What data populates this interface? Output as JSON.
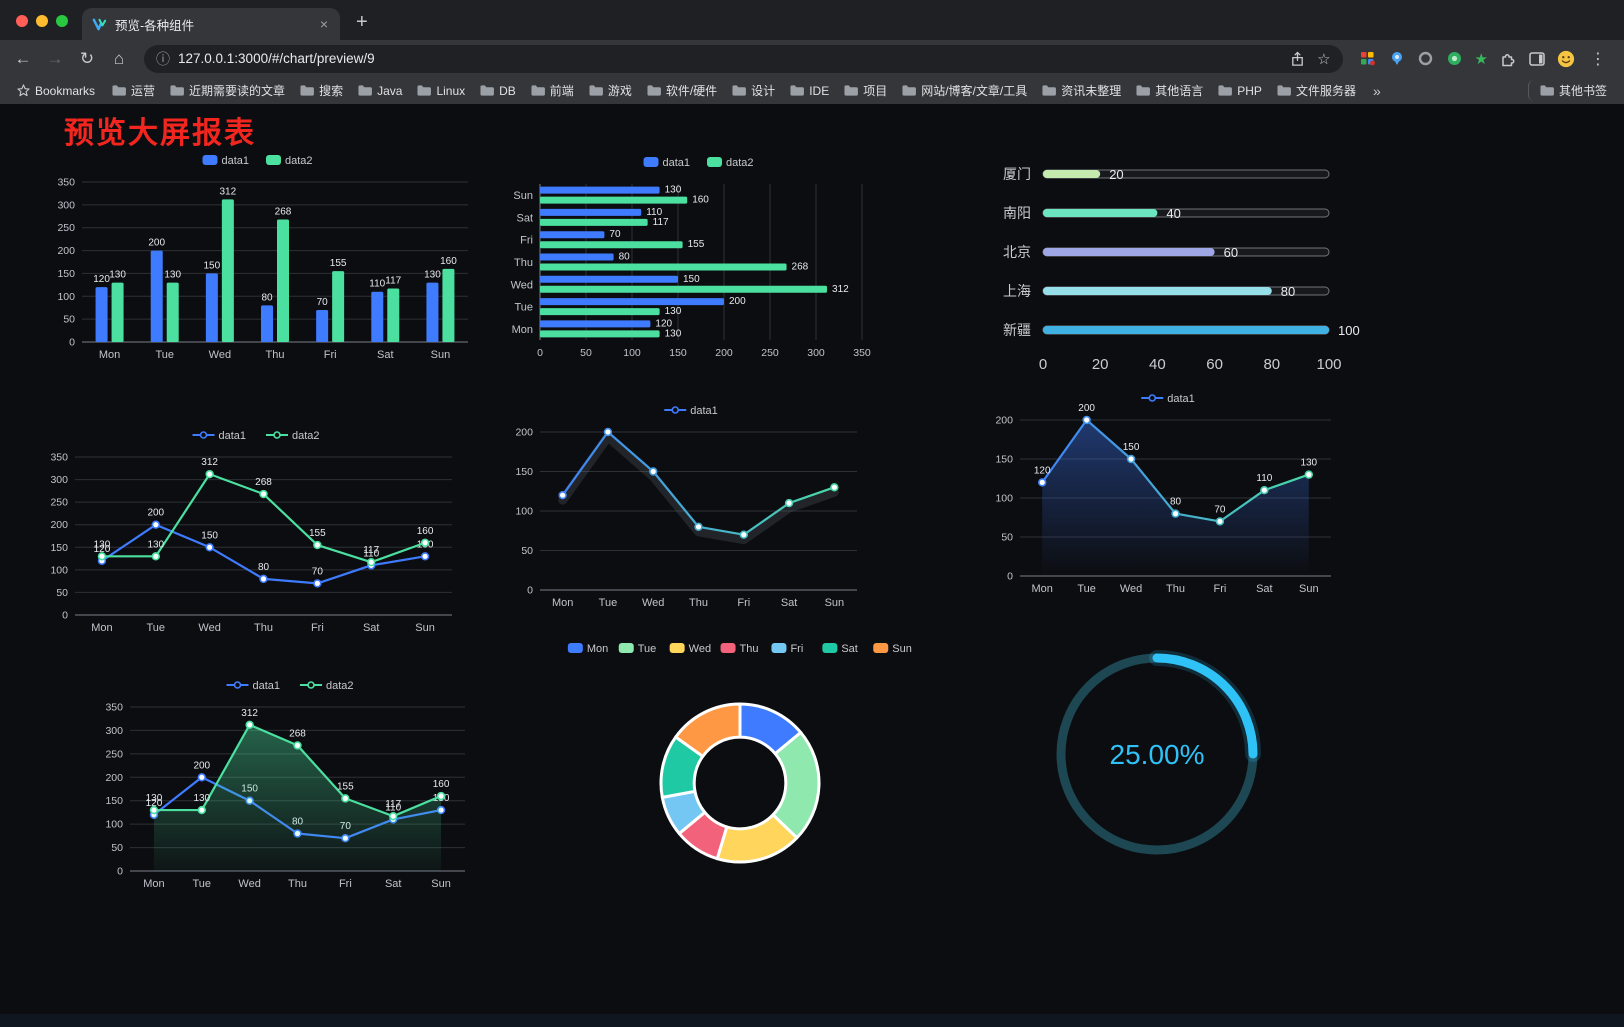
{
  "browser": {
    "traffic_lights": [
      "#ff5f57",
      "#febc2e",
      "#28c840"
    ],
    "tab": {
      "title": "预览-各种组件",
      "close": "×",
      "new_tab": "+"
    },
    "nav": {
      "back": "←",
      "forward": "→",
      "reload": "↻",
      "home": "⌂",
      "info": "ⓘ",
      "url": "127.0.0.1:3000/#/chart/preview/9",
      "star": "☆",
      "kebab": "⋮",
      "green_star": "★"
    },
    "bookmarks_bar": {
      "bookmarks_label": "Bookmarks",
      "folders": [
        "运营",
        "近期需要读的文章",
        "搜索",
        "Java",
        "Linux",
        "DB",
        "前端",
        "游戏",
        "软件/硬件",
        "设计",
        "IDE",
        "项目",
        "网站/博客/文章/工具",
        "资讯未整理",
        "其他语言",
        "PHP",
        "文件服务器"
      ],
      "overflow": "»",
      "other_bookmarks": "其他书签"
    }
  },
  "page": {
    "title": "预览大屏报表",
    "title_color": "#f3261f",
    "background": "#0c0d10"
  },
  "chart_data": [
    {
      "name": "grouped-bar-chart",
      "type": "bar",
      "categories": [
        "Mon",
        "Tue",
        "Wed",
        "Thu",
        "Fri",
        "Sat",
        "Sun"
      ],
      "series": [
        {
          "name": "data1",
          "color": "#3E7BFF",
          "values": [
            120,
            200,
            150,
            80,
            70,
            110,
            130
          ]
        },
        {
          "name": "data2",
          "color": "#4BE0A0",
          "values": [
            130,
            130,
            312,
            268,
            155,
            117,
            160
          ]
        }
      ],
      "ylim": [
        0,
        350
      ],
      "ytick_step": 50,
      "show_labels": true,
      "legend_position": "top",
      "grid": true
    },
    {
      "name": "horizontal-bar-chart",
      "type": "hbar",
      "categories": [
        "Mon",
        "Tue",
        "Wed",
        "Thu",
        "Fri",
        "Sat",
        "Sun"
      ],
      "series": [
        {
          "name": "data1",
          "color": "#3E7BFF",
          "values": [
            120,
            200,
            150,
            80,
            70,
            110,
            130
          ]
        },
        {
          "name": "data2",
          "color": "#4BE0A0",
          "values": [
            130,
            130,
            312,
            268,
            155,
            117,
            160
          ]
        }
      ],
      "xlim": [
        0,
        350
      ],
      "xtick_step": 50,
      "show_labels": true,
      "legend_position": "top",
      "grid": true
    },
    {
      "name": "progress-bar-chart",
      "type": "progress",
      "items": [
        {
          "label": "厦门",
          "value": 20,
          "color": "#c4ebad"
        },
        {
          "label": "南阳",
          "value": 40,
          "color": "#6be6c1"
        },
        {
          "label": "北京",
          "value": 60,
          "color": "#a0a7e6"
        },
        {
          "label": "上海",
          "value": 80,
          "color": "#96dee8"
        },
        {
          "label": "新疆",
          "value": 100,
          "color": "#3fb1e3"
        }
      ],
      "max": 100,
      "xticks": [
        0,
        20,
        40,
        60,
        80,
        100
      ]
    },
    {
      "name": "multi-line-chart",
      "type": "line",
      "categories": [
        "Mon",
        "Tue",
        "Wed",
        "Thu",
        "Fri",
        "Sat",
        "Sun"
      ],
      "series": [
        {
          "name": "data1",
          "color": "#3E7BFF",
          "values": [
            120,
            200,
            150,
            80,
            70,
            110,
            130
          ]
        },
        {
          "name": "data2",
          "color": "#4BE0A0",
          "values": [
            130,
            130,
            312,
            268,
            155,
            117,
            160
          ]
        }
      ],
      "ylim": [
        0,
        350
      ],
      "ytick_step": 50,
      "show_labels": true,
      "legend_position": "top",
      "grid": true
    },
    {
      "name": "gradient-line-chart",
      "type": "line",
      "categories": [
        "Mon",
        "Tue",
        "Wed",
        "Thu",
        "Fri",
        "Sat",
        "Sun"
      ],
      "series": [
        {
          "name": "data1",
          "gradient": [
            "#3E7BFF",
            "#4BE0A0"
          ],
          "values": [
            120,
            200,
            150,
            80,
            70,
            110,
            130
          ]
        }
      ],
      "ylim": [
        0,
        200
      ],
      "ytick_step": 50,
      "show_labels": false,
      "ghost": true,
      "legend_position": "top",
      "grid": true
    },
    {
      "name": "gradient-area-line-chart",
      "type": "line",
      "categories": [
        "Mon",
        "Tue",
        "Wed",
        "Thu",
        "Fri",
        "Sat",
        "Sun"
      ],
      "series": [
        {
          "name": "data1",
          "gradient": [
            "#3E7BFF",
            "#4BE0A0"
          ],
          "area": [
            "rgba(62,123,255,0.40)",
            "rgba(62,123,255,0)"
          ],
          "values": [
            120,
            200,
            150,
            80,
            70,
            110,
            130
          ]
        }
      ],
      "ylim": [
        0,
        200
      ],
      "ytick_step": 50,
      "show_labels": true,
      "legend_position": "top",
      "grid": true
    },
    {
      "name": "area-multi-line-chart",
      "type": "line",
      "categories": [
        "Mon",
        "Tue",
        "Wed",
        "Thu",
        "Fri",
        "Sat",
        "Sun"
      ],
      "series": [
        {
          "name": "data1",
          "color": "#3E7BFF",
          "values": [
            120,
            200,
            150,
            80,
            70,
            110,
            130
          ]
        },
        {
          "name": "data2",
          "color": "#4BE0A0",
          "area": [
            "rgba(75,224,160,0.45)",
            "rgba(75,224,160,0.04)"
          ],
          "values": [
            130,
            130,
            312,
            268,
            155,
            117,
            160
          ]
        }
      ],
      "ylim": [
        0,
        350
      ],
      "ytick_step": 50,
      "show_labels": true,
      "legend_position": "top",
      "grid": true
    },
    {
      "name": "donut-chart",
      "type": "pie",
      "categories": [
        "Mon",
        "Tue",
        "Wed",
        "Thu",
        "Fri",
        "Sat",
        "Sun"
      ],
      "values": [
        120,
        200,
        150,
        80,
        70,
        110,
        130
      ],
      "colors": [
        "#3E7BFF",
        "#8FE8AD",
        "#FFD55C",
        "#F2637B",
        "#74C7F2",
        "#1EC9A4",
        "#FF9845"
      ],
      "legend_position": "top",
      "inner_radius_ratio": 0.58
    },
    {
      "name": "gauge-chart",
      "type": "gauge",
      "value": 25,
      "label": "25.00%",
      "color": "#2fc2f7",
      "track": "#1d4753"
    }
  ]
}
